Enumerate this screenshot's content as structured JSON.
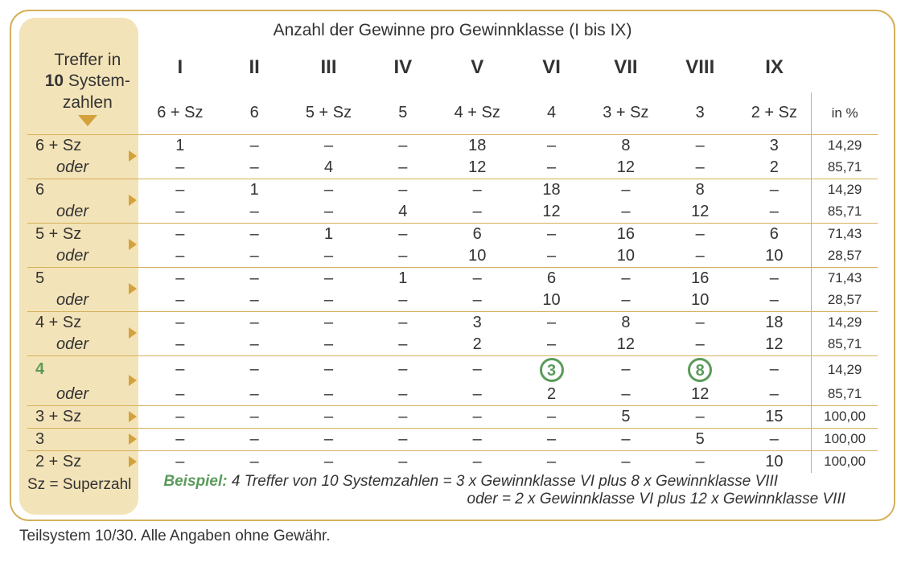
{
  "title": "Anzahl der Gewinne pro Gewinnklasse (I bis IX)",
  "header_box": {
    "line1": "Treffer in",
    "bold": "10",
    "line2_rest": " System-",
    "line3": "zahlen"
  },
  "columns": [
    {
      "roman": "I",
      "sub": "6 + Sz"
    },
    {
      "roman": "II",
      "sub": "6"
    },
    {
      "roman": "III",
      "sub": "5 + Sz"
    },
    {
      "roman": "IV",
      "sub": "5"
    },
    {
      "roman": "V",
      "sub": "4 + Sz"
    },
    {
      "roman": "VI",
      "sub": "4"
    },
    {
      "roman": "VII",
      "sub": "3 + Sz"
    },
    {
      "roman": "VIII",
      "sub": "3"
    },
    {
      "roman": "IX",
      "sub": "2 + Sz"
    }
  ],
  "pct_header": "in %",
  "oder_label": "oder",
  "bands": [
    {
      "label": "6 + Sz",
      "rows": [
        {
          "cells": [
            "1",
            "–",
            "–",
            "–",
            "18",
            "–",
            "8",
            "–",
            "3"
          ],
          "pct": "14,29"
        },
        {
          "cells": [
            "–",
            "–",
            "4",
            "–",
            "12",
            "–",
            "12",
            "–",
            "2"
          ],
          "pct": "85,71"
        }
      ]
    },
    {
      "label": "6",
      "rows": [
        {
          "cells": [
            "–",
            "1",
            "–",
            "–",
            "–",
            "18",
            "–",
            "8",
            "–"
          ],
          "pct": "14,29"
        },
        {
          "cells": [
            "–",
            "–",
            "–",
            "4",
            "–",
            "12",
            "–",
            "12",
            "–"
          ],
          "pct": "85,71"
        }
      ]
    },
    {
      "label": "5 + Sz",
      "rows": [
        {
          "cells": [
            "–",
            "–",
            "1",
            "–",
            "6",
            "–",
            "16",
            "–",
            "6"
          ],
          "pct": "71,43"
        },
        {
          "cells": [
            "–",
            "–",
            "–",
            "–",
            "10",
            "–",
            "10",
            "–",
            "10"
          ],
          "pct": "28,57"
        }
      ]
    },
    {
      "label": "5",
      "rows": [
        {
          "cells": [
            "–",
            "–",
            "–",
            "1",
            "–",
            "6",
            "–",
            "16",
            "–"
          ],
          "pct": "71,43"
        },
        {
          "cells": [
            "–",
            "–",
            "–",
            "–",
            "–",
            "10",
            "–",
            "10",
            "–"
          ],
          "pct": "28,57"
        }
      ]
    },
    {
      "label": "4 + Sz",
      "rows": [
        {
          "cells": [
            "–",
            "–",
            "–",
            "–",
            "3",
            "–",
            "8",
            "–",
            "18"
          ],
          "pct": "14,29"
        },
        {
          "cells": [
            "–",
            "–",
            "–",
            "–",
            "2",
            "–",
            "12",
            "–",
            "12"
          ],
          "pct": "85,71"
        }
      ]
    },
    {
      "label": "4",
      "highlight": true,
      "rows": [
        {
          "cells": [
            "–",
            "–",
            "–",
            "–",
            "–",
            "3",
            "–",
            "8",
            "–"
          ],
          "pct": "14,29",
          "circles": [
            5,
            7
          ]
        },
        {
          "cells": [
            "–",
            "–",
            "–",
            "–",
            "–",
            "2",
            "–",
            "12",
            "–"
          ],
          "pct": "85,71"
        }
      ]
    },
    {
      "label": "3 + Sz",
      "rows": [
        {
          "cells": [
            "–",
            "–",
            "–",
            "–",
            "–",
            "–",
            "5",
            "–",
            "15"
          ],
          "pct": "100,00"
        }
      ]
    },
    {
      "label": "3",
      "rows": [
        {
          "cells": [
            "–",
            "–",
            "–",
            "–",
            "–",
            "–",
            "–",
            "5",
            "–"
          ],
          "pct": "100,00"
        }
      ]
    },
    {
      "label": "2 + Sz",
      "rows": [
        {
          "cells": [
            "–",
            "–",
            "–",
            "–",
            "–",
            "–",
            "–",
            "–",
            "10"
          ],
          "pct": "100,00"
        }
      ]
    }
  ],
  "legend": "Sz = Superzahl",
  "example": {
    "prefix": "Beispiel:",
    "line1": " 4 Treffer von 10 Systemzahlen = 3 x Gewinnklasse VI plus 8 x Gewinnklasse VIII",
    "line2": "oder = 2 x Gewinnklasse VI plus 12 x Gewinnklasse VIII"
  },
  "footer": "Teilsystem 10/30. Alle Angaben ohne Gewähr.",
  "colors": {
    "border": "#d4b05a",
    "beige_bg": "#f3e3b8",
    "triangle": "#d4a23c",
    "green": "#5a9b5a",
    "text": "#333333"
  },
  "block_height": 618
}
